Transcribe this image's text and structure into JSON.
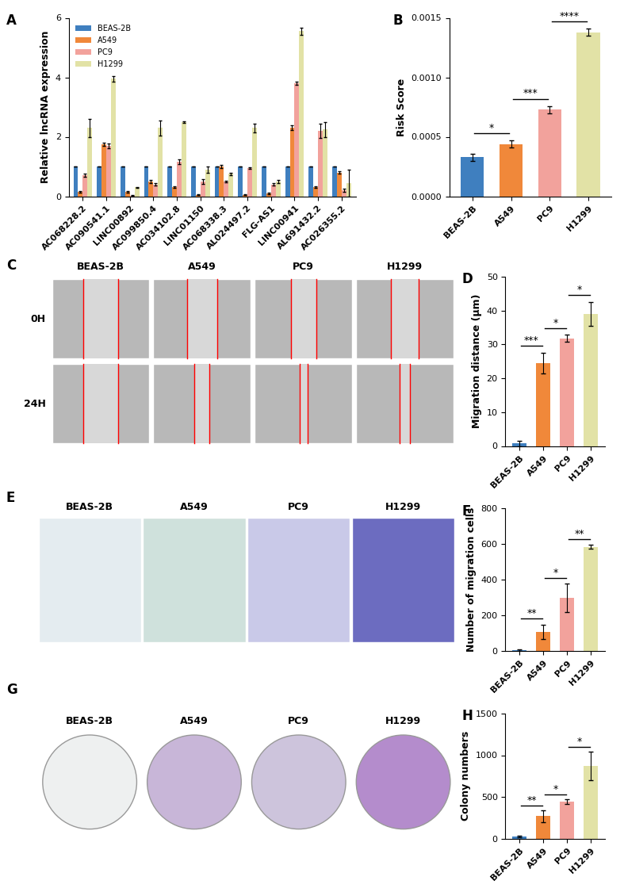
{
  "chart_data": [
    {
      "panel": "A",
      "type": "bar",
      "y_label": "Relative lncRNA expression",
      "categories": [
        "AC068228.2",
        "AC090541.1",
        "LINC00892",
        "AC099850.4",
        "AC034102.8",
        "LINC01150",
        "AC068338.3",
        "AL024497.2",
        "FLG-AS1",
        "LINC00941",
        "AL691432.2",
        "AC026355.2"
      ],
      "series": [
        {
          "name": "BEAS-2B",
          "color": "#3f7fbf",
          "values": [
            1,
            1,
            1,
            1,
            1,
            1,
            1,
            1,
            1,
            1,
            1,
            1
          ],
          "errors": [
            0,
            0,
            0,
            0,
            0,
            0,
            0,
            0,
            0,
            0,
            0,
            0
          ]
        },
        {
          "name": "A549",
          "color": "#f0883a",
          "values": [
            0.15,
            1.75,
            0.15,
            0.5,
            0.3,
            0.05,
            1.0,
            0.05,
            0.1,
            2.3,
            0.3,
            0.8
          ],
          "errors": [
            0.03,
            0.05,
            0.02,
            0.05,
            0.03,
            0.01,
            0.05,
            0.01,
            0.02,
            0.08,
            0.03,
            0.03
          ]
        },
        {
          "name": "PC9",
          "color": "#f2a29c",
          "values": [
            0.7,
            1.7,
            0.02,
            0.4,
            1.15,
            0.5,
            0.5,
            0.95,
            0.4,
            3.8,
            2.2,
            0.2
          ],
          "errors": [
            0.05,
            0.08,
            0.01,
            0.05,
            0.08,
            0.08,
            0.03,
            0.03,
            0.05,
            0.06,
            0.25,
            0.05
          ]
        },
        {
          "name": "H1299",
          "color": "#e2e2a6",
          "values": [
            2.3,
            3.95,
            0.3,
            2.3,
            2.5,
            0.9,
            0.75,
            2.3,
            0.5,
            5.55,
            2.25,
            0.45
          ],
          "errors": [
            0.3,
            0.1,
            0.02,
            0.25,
            0.03,
            0.1,
            0.05,
            0.15,
            0.05,
            0.12,
            0.25,
            0.45
          ]
        }
      ],
      "ylim": [
        0,
        6
      ],
      "yticks": [
        0,
        2,
        4,
        6
      ],
      "legend": "upper left"
    },
    {
      "panel": "B",
      "type": "bar",
      "y_label": "Risk Score",
      "categories": [
        "BEAS-2B",
        "A549",
        "PC9",
        "H1299"
      ],
      "values": [
        0.00033,
        0.00044,
        0.00073,
        0.00138
      ],
      "errors": [
        3e-05,
        3e-05,
        3e-05,
        3e-05
      ],
      "colors": [
        "#3f7fbf",
        "#f0883a",
        "#f2a29c",
        "#e2e2a6"
      ],
      "ylim": [
        0,
        0.0015
      ],
      "yticks": [
        {
          "value": 0,
          "label": "0.0000"
        },
        0.0005,
        {
          "value": 0.001,
          "label": "0.0010"
        },
        0.0015
      ],
      "significance": [
        {
          "from": "BEAS-2B",
          "to": "A549",
          "label": "*"
        },
        {
          "from": "A549",
          "to": "PC9",
          "label": "***"
        },
        {
          "from": "PC9",
          "to": "H1299",
          "label": "****"
        }
      ]
    },
    {
      "panel": "D",
      "type": "bar",
      "y_label": "Migration distance (μm)",
      "categories": [
        "BEAS-2B",
        "A549",
        "PC9",
        "H1299"
      ],
      "values": [
        0.8,
        24.5,
        31.8,
        39
      ],
      "errors": [
        0.8,
        3,
        1,
        3.5
      ],
      "colors": [
        "#3f7fbf",
        "#f0883a",
        "#f2a29c",
        "#e2e2a6"
      ],
      "ylim": [
        0,
        50
      ],
      "yticks": [
        0,
        10,
        20,
        30,
        40,
        50
      ],
      "significance": [
        {
          "from": "BEAS-2B",
          "to": "A549",
          "label": "***"
        },
        {
          "from": "A549",
          "to": "PC9",
          "label": "*"
        },
        {
          "from": "PC9",
          "to": "H1299",
          "label": "*"
        }
      ]
    },
    {
      "panel": "F",
      "type": "bar",
      "y_label": "Number of migration cells",
      "categories": [
        "BEAS-2B",
        "A549",
        "PC9",
        "H1299"
      ],
      "values": [
        5,
        110,
        300,
        585
      ],
      "errors": [
        5,
        40,
        80,
        10
      ],
      "colors": [
        "#3f7fbf",
        "#f0883a",
        "#f2a29c",
        "#e2e2a6"
      ],
      "ylim": [
        0,
        800
      ],
      "yticks": [
        0,
        200,
        400,
        600,
        800
      ],
      "significance": [
        {
          "from": "BEAS-2B",
          "to": "A549",
          "label": "**"
        },
        {
          "from": "A549",
          "to": "PC9",
          "label": "*"
        },
        {
          "from": "PC9",
          "to": "H1299",
          "label": "**"
        }
      ]
    },
    {
      "panel": "H",
      "type": "bar",
      "y_label": "Colony numbers",
      "categories": [
        "BEAS-2B",
        "A549",
        "PC9",
        "H1299"
      ],
      "values": [
        20,
        270,
        440,
        870
      ],
      "errors": [
        10,
        70,
        30,
        170
      ],
      "colors": [
        "#3f7fbf",
        "#f0883a",
        "#f2a29c",
        "#e2e2a6"
      ],
      "ylim": [
        0,
        1500
      ],
      "yticks": [
        0,
        500,
        1000,
        1500
      ],
      "significance": [
        {
          "from": "BEAS-2B",
          "to": "A549",
          "label": "**"
        },
        {
          "from": "A549",
          "to": "PC9",
          "label": "*"
        },
        {
          "from": "PC9",
          "to": "H1299",
          "label": "*"
        }
      ]
    }
  ],
  "image_panels": [
    {
      "panel": "C",
      "columns": [
        "BEAS-2B",
        "A549",
        "PC9",
        "H1299"
      ],
      "rows": [
        "0H",
        "24H"
      ]
    },
    {
      "panel": "E",
      "columns": [
        "BEAS-2B",
        "A549",
        "PC9",
        "H1299"
      ]
    },
    {
      "panel": "G",
      "columns": [
        "BEAS-2B",
        "A549",
        "PC9",
        "H1299"
      ]
    }
  ]
}
